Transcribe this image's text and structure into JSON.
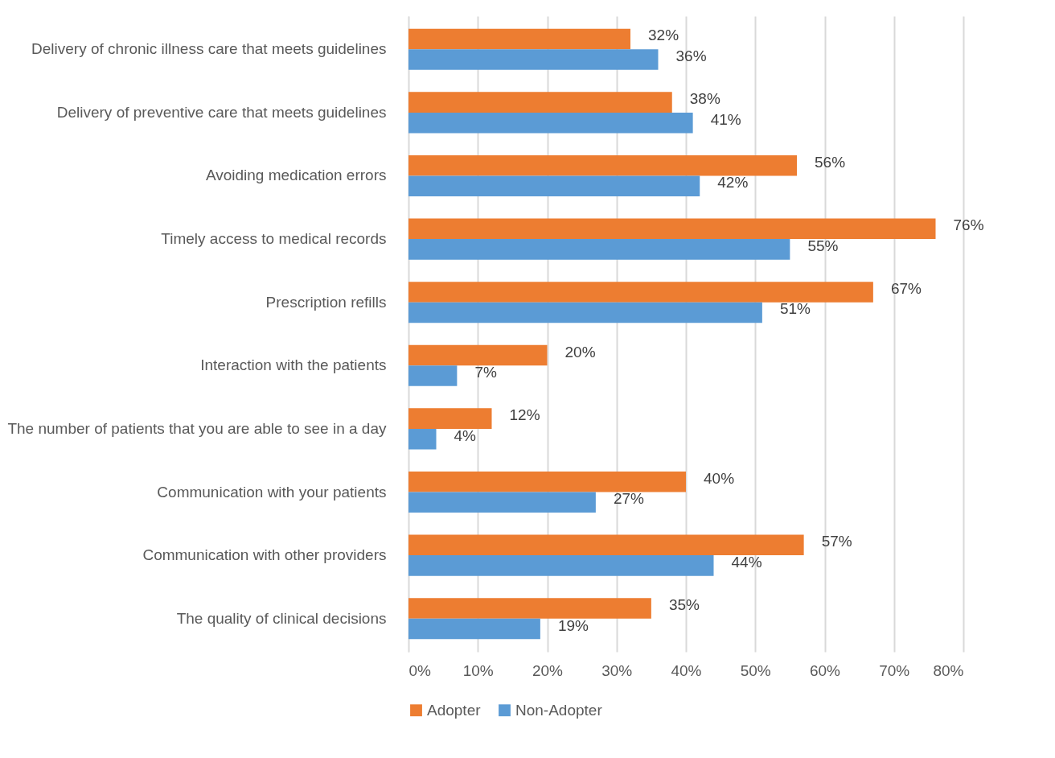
{
  "chart_data": {
    "type": "bar",
    "orientation": "horizontal",
    "categories": [
      "Delivery of chronic illness care that meets guidelines",
      "Delivery of preventive care that meets guidelines",
      "Avoiding medication errors",
      "Timely access to medical records",
      "Prescription refills",
      "Interaction with the patients",
      "The number of patients that you are able to see in a day",
      "Communication with your patients",
      "Communication with other providers",
      "The quality of clinical decisions"
    ],
    "series": [
      {
        "name": "Adopter",
        "color": "#ed7d31",
        "values": [
          32,
          38,
          56,
          76,
          67,
          20,
          12,
          40,
          57,
          35
        ],
        "value_labels": [
          "32%",
          "38%",
          "56%",
          "76%",
          "67%",
          "20%",
          "12%",
          "40%",
          "57%",
          "35%"
        ]
      },
      {
        "name": "Non-Adopter",
        "color": "#5b9bd5",
        "values": [
          36,
          41,
          42,
          55,
          51,
          7,
          4,
          27,
          44,
          19
        ],
        "value_labels": [
          "36%",
          "41%",
          "42%",
          "55%",
          "51%",
          "7%",
          "4%",
          "27%",
          "44%",
          "19%"
        ]
      }
    ],
    "xlim": [
      0,
      80
    ],
    "xticks": [
      {
        "value": 0,
        "label": "0%"
      },
      {
        "value": 10,
        "label": "10%"
      },
      {
        "value": 20,
        "label": "20%"
      },
      {
        "value": 30,
        "label": "30%"
      },
      {
        "value": 40,
        "label": "40%"
      },
      {
        "value": 50,
        "label": "50%"
      },
      {
        "value": 60,
        "label": "60%"
      },
      {
        "value": 70,
        "label": "70%"
      },
      {
        "value": 80,
        "label": "80%"
      }
    ],
    "grid": "x",
    "legend": "bottom"
  }
}
